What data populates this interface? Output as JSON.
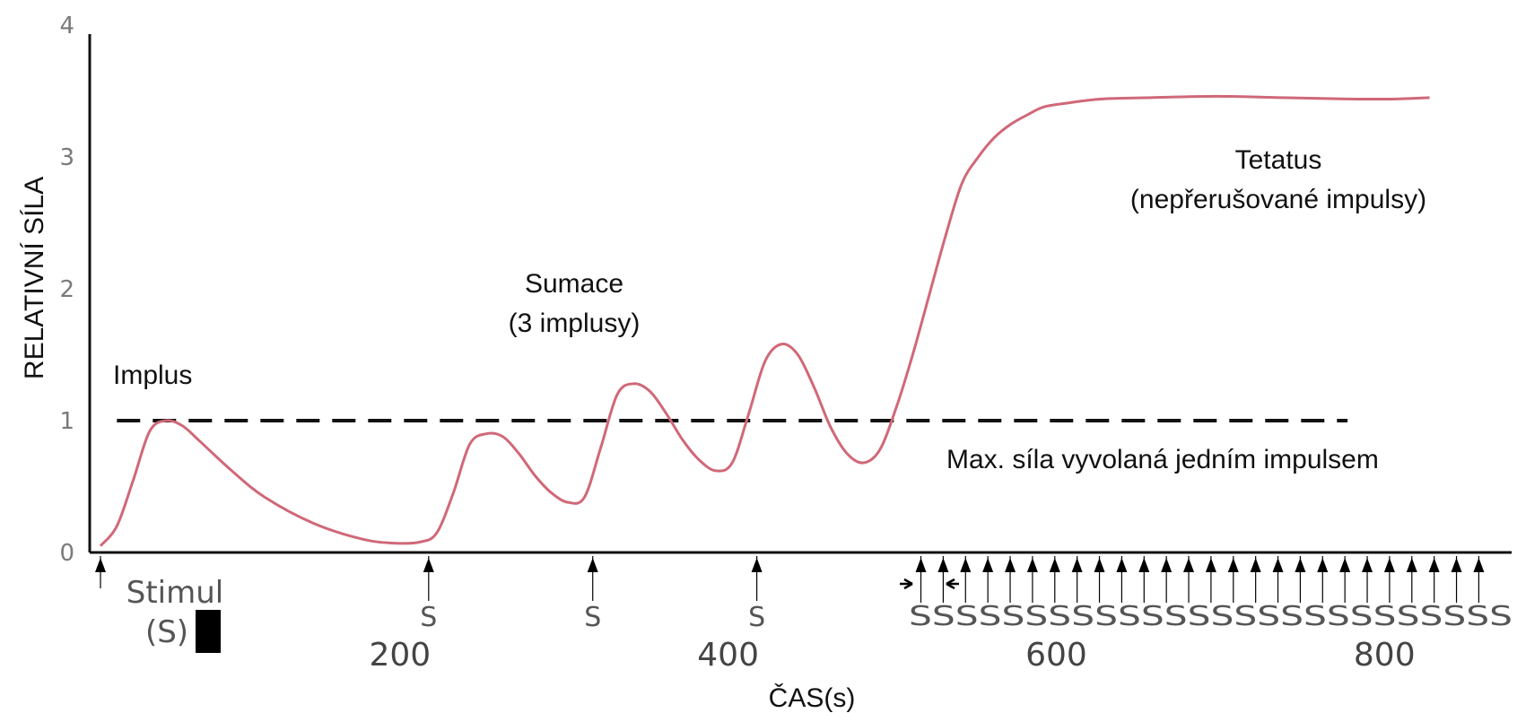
{
  "chart_data": {
    "type": "line",
    "xlabel": "ČAS(s)",
    "ylabel": "RELATIVNÍ SÍLA",
    "xlim": [
      0,
      860
    ],
    "ylim": [
      0,
      4
    ],
    "x_ticks": [
      200,
      400,
      600,
      800
    ],
    "y_ticks": [
      0,
      1,
      2,
      3,
      4
    ],
    "series": [
      {
        "x": [
          0,
          10,
          20,
          30,
          40,
          50,
          60,
          80,
          100,
          130,
          160,
          180,
          195,
          205,
          215,
          225,
          235,
          245,
          255,
          265,
          275,
          285,
          295,
          305,
          315,
          325,
          335,
          345,
          355,
          365,
          375,
          385,
          395,
          405,
          415,
          425,
          435,
          445,
          455,
          465,
          475,
          485,
          495,
          505,
          515,
          525,
          535,
          545,
          555,
          565,
          575,
          590,
          610,
          640,
          680,
          720,
          760,
          790,
          810
        ],
        "y": [
          0.05,
          0.2,
          0.55,
          0.92,
          1.0,
          0.96,
          0.85,
          0.62,
          0.42,
          0.22,
          0.1,
          0.07,
          0.08,
          0.15,
          0.45,
          0.82,
          0.9,
          0.88,
          0.75,
          0.58,
          0.45,
          0.38,
          0.42,
          0.8,
          1.2,
          1.28,
          1.22,
          1.05,
          0.85,
          0.7,
          0.62,
          0.68,
          1.05,
          1.45,
          1.58,
          1.5,
          1.25,
          0.95,
          0.75,
          0.68,
          0.78,
          1.1,
          1.5,
          1.95,
          2.4,
          2.8,
          3.0,
          3.15,
          3.25,
          3.32,
          3.38,
          3.41,
          3.44,
          3.45,
          3.46,
          3.45,
          3.44,
          3.44,
          3.45
        ],
        "color": "#d06878"
      }
    ],
    "reference_line": {
      "y": 1,
      "x_start": 10,
      "x_end": 760,
      "style": "dashed"
    },
    "stimuli_single": [
      0
    ],
    "stimuli_summation": [
      200,
      300,
      400
    ],
    "stimuli_tetanus": [
      500,
      513.6,
      527.2,
      540.8,
      554.4,
      568,
      581.6,
      595.2,
      608.8,
      622.4,
      636,
      649.6,
      663.2,
      676.8,
      690.4,
      704,
      717.6,
      731.2,
      744.8,
      758.4,
      772,
      785.6,
      799.2,
      812.8,
      826.4,
      840
    ],
    "tetanus_label": "SSSSSSSSSSSSSSSSSSSSSSSSSS",
    "stimulus_single_label": "S",
    "annotations": {
      "impulse": "Implus",
      "summation_title": "Sumace",
      "summation_sub": "(3 implusy)",
      "tetanus_title": "Tetatus",
      "tetanus_sub": "(nepřerušované impulsy)",
      "max_force": "Max. síla vyvolaná jedním impulsem",
      "stimulus_title": "Stimul",
      "stimulus_sub": "(S)"
    },
    "colors": {
      "curve": "#d06878",
      "axis": "#111111",
      "dashed": "#111111"
    }
  }
}
